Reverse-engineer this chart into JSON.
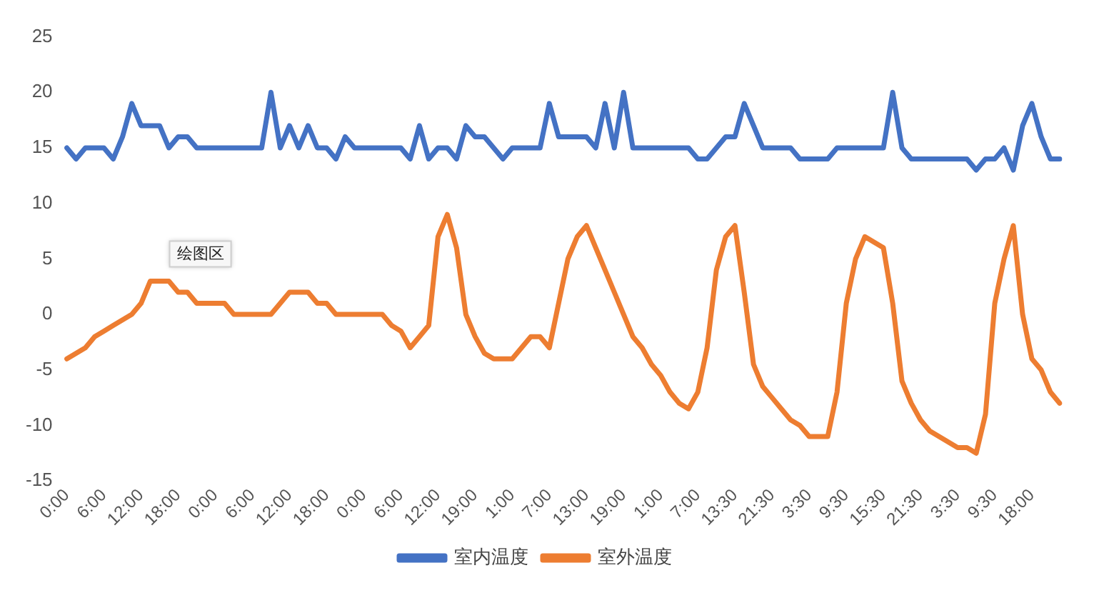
{
  "chart_data": {
    "type": "line",
    "categories": [
      "0:00",
      null,
      null,
      null,
      "6:00",
      null,
      null,
      null,
      "12:00",
      null,
      null,
      null,
      "18:00",
      null,
      null,
      null,
      "0:00",
      null,
      null,
      null,
      "6:00",
      null,
      null,
      null,
      "12:00",
      null,
      null,
      null,
      "18:00",
      null,
      null,
      null,
      "0:00",
      null,
      null,
      null,
      "6:00",
      null,
      null,
      null,
      "12:00",
      null,
      null,
      null,
      "19:00",
      null,
      null,
      null,
      "1:00",
      null,
      null,
      null,
      "7:00",
      null,
      null,
      null,
      "13:00",
      null,
      null,
      null,
      "19:00",
      null,
      null,
      null,
      "1:00",
      null,
      null,
      null,
      "7:00",
      null,
      null,
      null,
      "13:30",
      null,
      null,
      null,
      "21:30",
      null,
      null,
      null,
      "3:30",
      null,
      null,
      null,
      "9:30",
      null,
      null,
      null,
      "15:30",
      null,
      null,
      null,
      "21:30",
      null,
      null,
      null,
      "3:30",
      null,
      null,
      null,
      "9:30",
      null,
      null,
      null,
      "18:00",
      null,
      null,
      null
    ],
    "series": [
      {
        "name": "室内温度",
        "color": "#4472c4",
        "values": [
          15,
          14,
          15,
          15,
          15,
          14,
          16,
          19,
          17,
          17,
          17,
          15,
          16,
          16,
          15,
          15,
          15,
          15,
          15,
          15,
          15,
          15,
          20,
          15,
          17,
          15,
          17,
          15,
          15,
          14,
          16,
          15,
          15,
          15,
          15,
          15,
          15,
          14,
          17,
          14,
          15,
          15,
          14,
          17,
          16,
          16,
          15,
          14,
          15,
          15,
          15,
          15,
          19,
          16,
          16,
          16,
          16,
          15,
          19,
          15,
          20,
          15,
          15,
          15,
          15,
          15,
          15,
          15,
          14,
          14,
          15,
          16,
          16,
          19,
          17,
          15,
          15,
          15,
          15,
          14,
          14,
          14,
          14,
          15,
          15,
          15,
          15,
          15,
          15,
          20,
          15,
          14,
          14,
          14,
          14,
          14,
          14,
          14,
          13,
          14,
          14,
          15,
          13,
          17,
          19,
          16,
          14,
          14
        ]
      },
      {
        "name": "室外温度",
        "color": "#ed7d31",
        "values": [
          -4,
          -3.5,
          -3,
          -2,
          -1.5,
          -1,
          -0.5,
          0,
          1,
          3,
          3,
          3,
          2,
          2,
          1,
          1,
          1,
          1,
          0,
          0,
          0,
          0,
          0,
          1,
          2,
          2,
          2,
          1,
          1,
          0,
          0,
          0,
          0,
          0,
          0,
          -1,
          -1.5,
          -3,
          -2,
          -1,
          7,
          9,
          6,
          0,
          -2,
          -3.5,
          -4,
          -4,
          -4,
          -3,
          -2,
          -2,
          -3,
          1,
          5,
          7,
          8,
          6,
          4,
          2,
          0,
          -2,
          -3,
          -4.5,
          -5.5,
          -7,
          -8,
          -8.5,
          -7,
          -3,
          4,
          7,
          8,
          2,
          -4.5,
          -6.5,
          -7.5,
          -8.5,
          -9.5,
          -10,
          -11,
          -11,
          -11,
          -7,
          1,
          5,
          7,
          6.5,
          6,
          1,
          -6,
          -8,
          -9.5,
          -10.5,
          -11,
          -11.5,
          -12,
          -12,
          -12.5,
          -9,
          1,
          5,
          8,
          0,
          -4,
          -5,
          -7,
          -8
        ]
      }
    ],
    "ylim": [
      -15,
      25
    ],
    "yticks": [
      -15,
      -10,
      -5,
      0,
      5,
      10,
      15,
      20,
      25
    ],
    "grid": false,
    "legend": "bottom",
    "marker": "none",
    "line_style": "solid",
    "annotations": [
      "绘图区"
    ]
  }
}
